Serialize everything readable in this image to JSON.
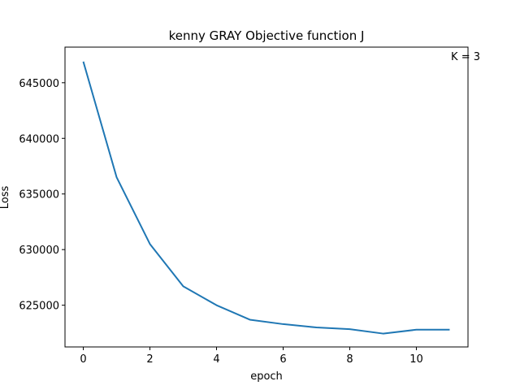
{
  "chart_data": {
    "type": "line",
    "title": "kenny GRAY Objective function J",
    "xlabel": "epoch",
    "ylabel": "Loss",
    "annotation": "K = 3",
    "xlim": [
      -0.55,
      11.55
    ],
    "ylim": [
      621250,
      648200
    ],
    "xticks": [
      0,
      2,
      4,
      6,
      8,
      10
    ],
    "xtick_labels": [
      "0",
      "2",
      "4",
      "6",
      "8",
      "10"
    ],
    "yticks": [
      625000,
      630000,
      635000,
      640000,
      645000
    ],
    "ytick_labels": [
      "625000",
      "630000",
      "635000",
      "640000",
      "645000"
    ],
    "grid": false,
    "series": [
      {
        "color": "#1f77b4",
        "x": [
          0,
          1,
          2,
          3,
          4,
          5,
          6,
          7,
          8,
          9,
          10,
          11
        ],
        "y": [
          646900,
          636500,
          630500,
          626700,
          625000,
          623700,
          623300,
          623000,
          622850,
          622450,
          622800,
          622800
        ]
      }
    ]
  }
}
